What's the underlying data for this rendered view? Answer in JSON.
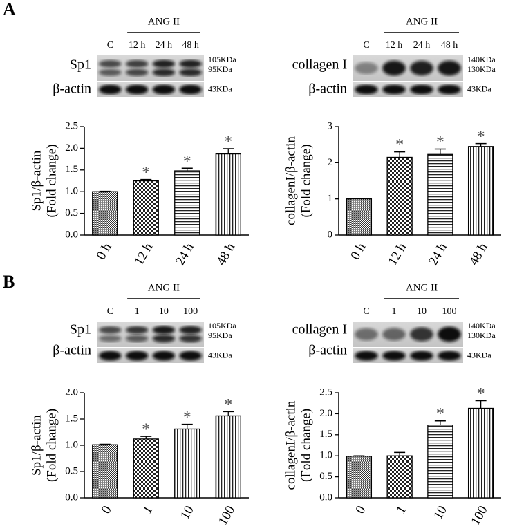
{
  "panel_labels": [
    "A",
    "B"
  ],
  "blots": [
    {
      "group": "ANG II",
      "lanes": [
        "C",
        "12 h",
        "24 h",
        "48 h"
      ],
      "rows": [
        {
          "label": "Sp1",
          "sizes": [
            "105KDa",
            "95KDa"
          ]
        },
        {
          "label": "β-actin",
          "sizes": [
            "43KDa"
          ]
        }
      ]
    },
    {
      "group": "ANG II",
      "lanes": [
        "C",
        "12 h",
        "24 h",
        "48 h"
      ],
      "rows": [
        {
          "label": "collagen I",
          "sizes": [
            "140KDa",
            "130KDa"
          ]
        },
        {
          "label": "β-actin",
          "sizes": [
            "43KDa"
          ]
        }
      ]
    },
    {
      "group": "ANG II",
      "lanes": [
        "C",
        "1",
        "10",
        "100"
      ],
      "rows": [
        {
          "label": "Sp1",
          "sizes": [
            "105KDa",
            "95KDa"
          ]
        },
        {
          "label": "β-actin",
          "sizes": [
            "43KDa"
          ]
        }
      ]
    },
    {
      "group": "ANG II",
      "lanes": [
        "C",
        "1",
        "10",
        "100"
      ],
      "rows": [
        {
          "label": "collagen I",
          "sizes": [
            "140KDa",
            "130KDa"
          ]
        },
        {
          "label": "β-actin",
          "sizes": [
            "43KDa"
          ]
        }
      ]
    }
  ],
  "chart_data": [
    {
      "type": "bar",
      "ylabel": [
        "Sp1/β-actin",
        "(Fold change)"
      ],
      "categories": [
        "0 h",
        "12 h",
        "24 h",
        "48 h"
      ],
      "values": [
        1.0,
        1.25,
        1.48,
        1.87
      ],
      "errors": [
        0.01,
        0.03,
        0.06,
        0.12
      ],
      "significance": [
        null,
        "*",
        "*",
        "*"
      ],
      "patterns": [
        "dots",
        "checker",
        "hlines",
        "vlines"
      ],
      "ylim": [
        0,
        2.5
      ],
      "yticks": [
        {
          "value": 0,
          "label": "0.0"
        },
        0.5,
        {
          "value": 1,
          "label": "1.0"
        },
        1.5,
        {
          "value": 2,
          "label": "2.0"
        },
        2.5
      ]
    },
    {
      "type": "bar",
      "ylabel": [
        "collagenI/β-actin",
        "(Fold change)"
      ],
      "categories": [
        "0 h",
        "12 h",
        "24 h",
        "48 h"
      ],
      "values": [
        1.0,
        2.15,
        2.23,
        2.45
      ],
      "errors": [
        0.01,
        0.15,
        0.15,
        0.08
      ],
      "significance": [
        null,
        "*",
        "*",
        "*"
      ],
      "patterns": [
        "dots",
        "checker",
        "hlines",
        "vlines"
      ],
      "ylim": [
        0,
        3
      ],
      "yticks": [
        0,
        1,
        2,
        3
      ]
    },
    {
      "type": "bar",
      "ylabel": [
        "Sp1/β-actin",
        "(Fold change)"
      ],
      "categories": [
        "0",
        "1",
        "10",
        "100"
      ],
      "values": [
        1.01,
        1.12,
        1.31,
        1.56
      ],
      "errors": [
        0.01,
        0.05,
        0.09,
        0.08
      ],
      "significance": [
        null,
        "*",
        "*",
        "*"
      ],
      "patterns": [
        "dots",
        "checker",
        "vlines",
        "vlines"
      ],
      "ylim": [
        0,
        2
      ],
      "yticks": [
        {
          "value": 0,
          "label": "0.0"
        },
        0.5,
        {
          "value": 1,
          "label": "1.0"
        },
        1.5,
        {
          "value": 2,
          "label": "2.0"
        }
      ]
    },
    {
      "type": "bar",
      "ylabel": [
        "collagenI/β-actin",
        "(Fold change)"
      ],
      "categories": [
        "0",
        "1",
        "10",
        "100"
      ],
      "values": [
        0.99,
        1.0,
        1.73,
        2.13
      ],
      "errors": [
        0.01,
        0.08,
        0.1,
        0.18
      ],
      "significance": [
        null,
        null,
        "*",
        "*"
      ],
      "patterns": [
        "dots",
        "checker",
        "hlines",
        "vlines"
      ],
      "ylim": [
        0,
        2.5
      ],
      "yticks": [
        {
          "value": 0,
          "label": "0.0"
        },
        0.5,
        {
          "value": 1,
          "label": "1.0"
        },
        1.5,
        {
          "value": 2,
          "label": "2.0"
        },
        2.5
      ]
    }
  ]
}
